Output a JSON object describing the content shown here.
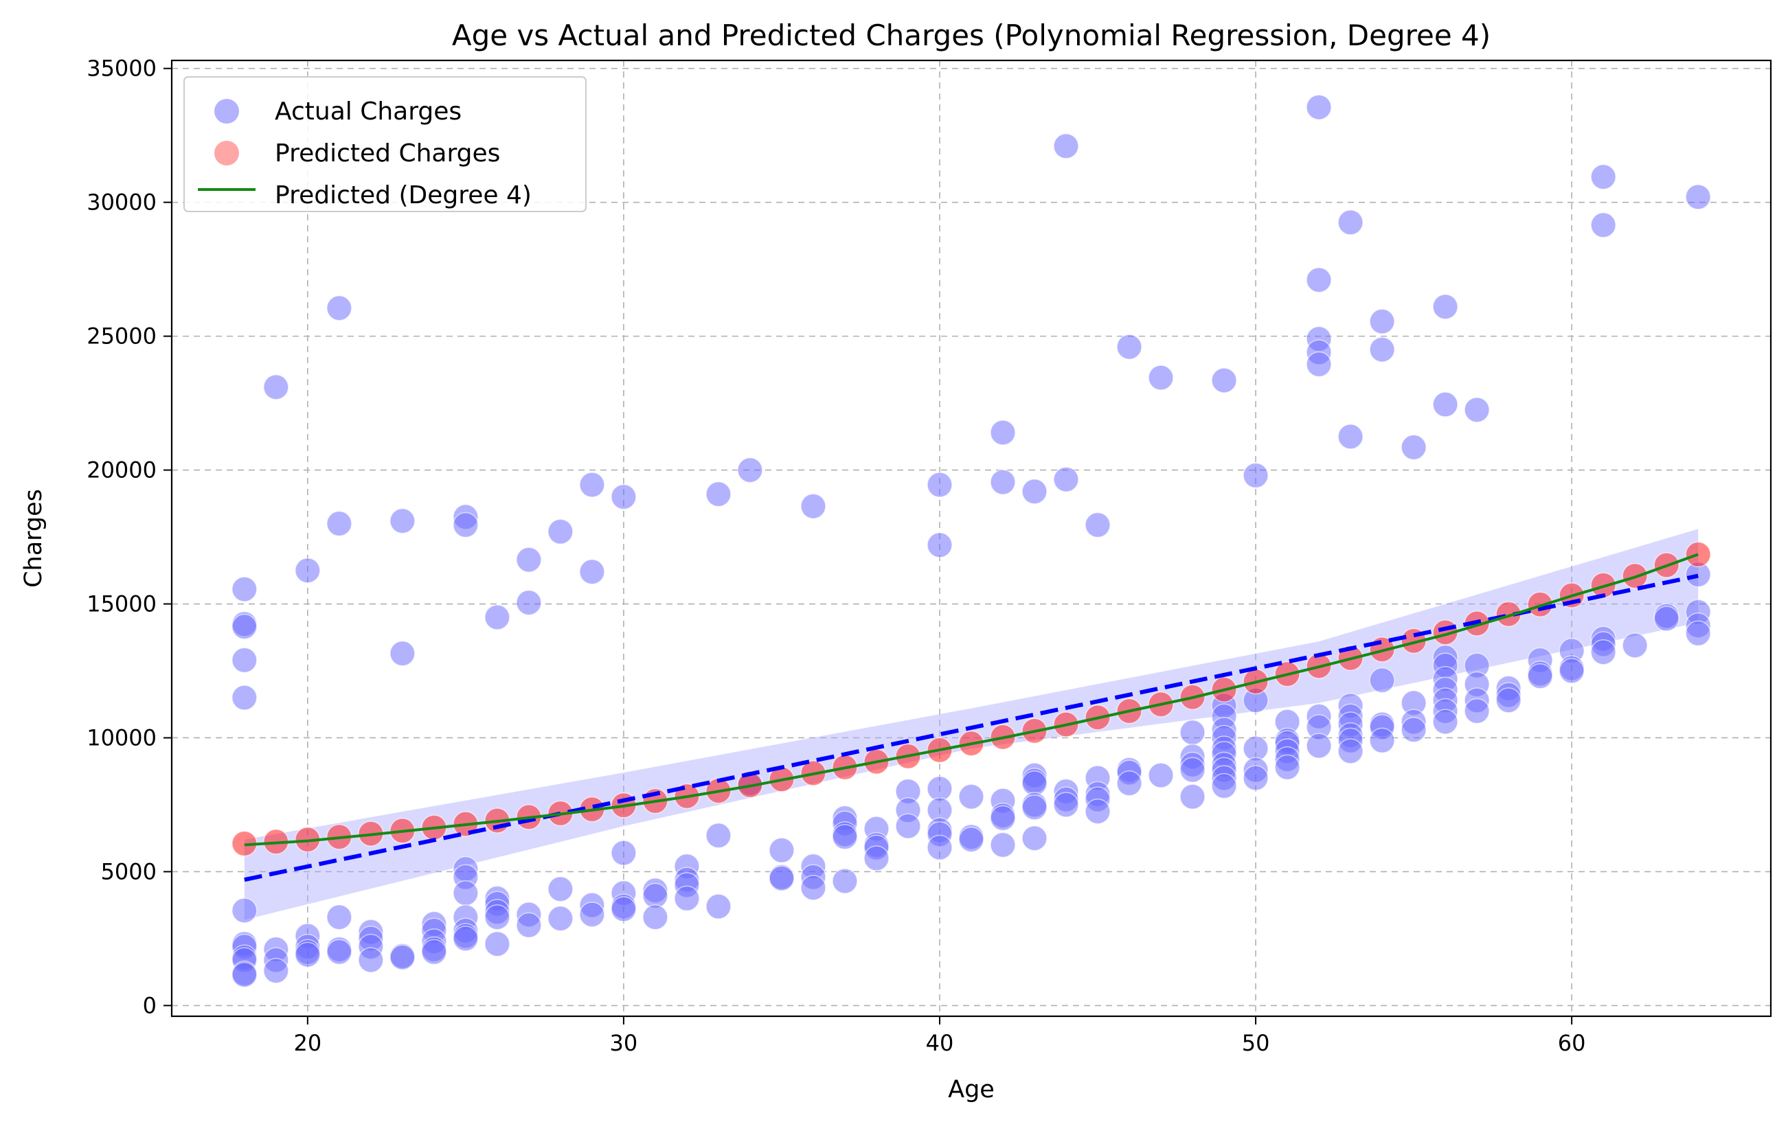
{
  "chart_data": {
    "type": "scatter",
    "title": "Age vs Actual and Predicted Charges (Polynomial Regression, Degree 4)",
    "xlabel": "Age",
    "ylabel": "Charges",
    "xlim": [
      15.7,
      66.3
    ],
    "ylim": [
      -400,
      35300
    ],
    "xticks": [
      20,
      30,
      40,
      50,
      60
    ],
    "yticks": [
      0,
      5000,
      10000,
      15000,
      20000,
      25000,
      30000,
      35000
    ],
    "grid": true,
    "legend_position": "top-left",
    "colors": {
      "actual": "#6666ff",
      "predicted": "#ff2020",
      "poly_line": "#138a13",
      "linear_line": "#0000ff",
      "band": "#aaaaff"
    },
    "series": [
      {
        "name": "Actual Charges",
        "kind": "scatter",
        "points": [
          [
            18,
            15550
          ],
          [
            18,
            14250
          ],
          [
            18,
            14150
          ],
          [
            18,
            12900
          ],
          [
            18,
            11500
          ],
          [
            18,
            3550
          ],
          [
            18,
            2300
          ],
          [
            18,
            2200
          ],
          [
            18,
            1800
          ],
          [
            18,
            1700
          ],
          [
            18,
            1200
          ],
          [
            18,
            1150
          ],
          [
            19,
            23100
          ],
          [
            19,
            2100
          ],
          [
            19,
            1700
          ],
          [
            19,
            1300
          ],
          [
            20,
            16250
          ],
          [
            20,
            2600
          ],
          [
            20,
            2200
          ],
          [
            20,
            2000
          ],
          [
            20,
            1900
          ],
          [
            21,
            26050
          ],
          [
            21,
            18000
          ],
          [
            21,
            3300
          ],
          [
            21,
            2100
          ],
          [
            21,
            2000
          ],
          [
            22,
            2750
          ],
          [
            22,
            2500
          ],
          [
            22,
            2200
          ],
          [
            22,
            1700
          ],
          [
            23,
            18100
          ],
          [
            23,
            13150
          ],
          [
            23,
            1850
          ],
          [
            23,
            1800
          ],
          [
            24,
            3050
          ],
          [
            24,
            2800
          ],
          [
            24,
            2400
          ],
          [
            24,
            2100
          ],
          [
            24,
            2000
          ],
          [
            25,
            18250
          ],
          [
            25,
            17950
          ],
          [
            25,
            5100
          ],
          [
            25,
            4800
          ],
          [
            25,
            4200
          ],
          [
            25,
            3300
          ],
          [
            25,
            2800
          ],
          [
            25,
            2600
          ],
          [
            25,
            2500
          ],
          [
            26,
            14500
          ],
          [
            26,
            4000
          ],
          [
            26,
            3800
          ],
          [
            26,
            3500
          ],
          [
            26,
            3300
          ],
          [
            26,
            2300
          ],
          [
            27,
            16650
          ],
          [
            27,
            15050
          ],
          [
            27,
            3400
          ],
          [
            27,
            3000
          ],
          [
            28,
            17700
          ],
          [
            28,
            4350
          ],
          [
            28,
            3250
          ],
          [
            29,
            19450
          ],
          [
            29,
            16200
          ],
          [
            29,
            3750
          ],
          [
            29,
            3400
          ],
          [
            30,
            19000
          ],
          [
            30,
            5700
          ],
          [
            30,
            4200
          ],
          [
            30,
            3700
          ],
          [
            30,
            3600
          ],
          [
            31,
            4300
          ],
          [
            31,
            4100
          ],
          [
            31,
            3300
          ],
          [
            32,
            5200
          ],
          [
            32,
            4700
          ],
          [
            32,
            4500
          ],
          [
            32,
            4000
          ],
          [
            33,
            19100
          ],
          [
            33,
            6350
          ],
          [
            33,
            3700
          ],
          [
            34,
            20000
          ],
          [
            34,
            8300
          ],
          [
            35,
            5800
          ],
          [
            35,
            4800
          ],
          [
            35,
            4750
          ],
          [
            36,
            18650
          ],
          [
            36,
            5200
          ],
          [
            36,
            4800
          ],
          [
            36,
            4400
          ],
          [
            37,
            7000
          ],
          [
            37,
            6800
          ],
          [
            37,
            6400
          ],
          [
            37,
            6300
          ],
          [
            37,
            4650
          ],
          [
            38,
            6600
          ],
          [
            38,
            6000
          ],
          [
            38,
            5900
          ],
          [
            38,
            5500
          ],
          [
            39,
            8000
          ],
          [
            39,
            7300
          ],
          [
            39,
            6700
          ],
          [
            40,
            19450
          ],
          [
            40,
            17200
          ],
          [
            40,
            8100
          ],
          [
            40,
            7300
          ],
          [
            40,
            6550
          ],
          [
            40,
            6400
          ],
          [
            40,
            5900
          ],
          [
            41,
            7800
          ],
          [
            41,
            6300
          ],
          [
            41,
            6200
          ],
          [
            42,
            21400
          ],
          [
            42,
            19550
          ],
          [
            42,
            7650
          ],
          [
            42,
            7100
          ],
          [
            42,
            7000
          ],
          [
            42,
            6000
          ],
          [
            43,
            19200
          ],
          [
            43,
            8600
          ],
          [
            43,
            8400
          ],
          [
            43,
            8300
          ],
          [
            43,
            7500
          ],
          [
            43,
            7400
          ],
          [
            43,
            6250
          ],
          [
            44,
            32100
          ],
          [
            44,
            19650
          ],
          [
            44,
            8000
          ],
          [
            44,
            7700
          ],
          [
            44,
            7500
          ],
          [
            45,
            17950
          ],
          [
            45,
            8500
          ],
          [
            45,
            7900
          ],
          [
            45,
            7700
          ],
          [
            45,
            7250
          ],
          [
            46,
            24600
          ],
          [
            46,
            8800
          ],
          [
            46,
            8700
          ],
          [
            46,
            8300
          ],
          [
            47,
            23450
          ],
          [
            47,
            8600
          ],
          [
            48,
            10200
          ],
          [
            48,
            9300
          ],
          [
            48,
            9000
          ],
          [
            48,
            8800
          ],
          [
            48,
            7800
          ],
          [
            49,
            23350
          ],
          [
            49,
            11200
          ],
          [
            49,
            10800
          ],
          [
            49,
            10300
          ],
          [
            49,
            10000
          ],
          [
            49,
            9600
          ],
          [
            49,
            9400
          ],
          [
            49,
            9000
          ],
          [
            49,
            8800
          ],
          [
            49,
            8500
          ],
          [
            49,
            8200
          ],
          [
            50,
            19800
          ],
          [
            50,
            11400
          ],
          [
            50,
            9600
          ],
          [
            50,
            8800
          ],
          [
            50,
            8500
          ],
          [
            51,
            10600
          ],
          [
            51,
            9900
          ],
          [
            51,
            9800
          ],
          [
            51,
            9500
          ],
          [
            51,
            9200
          ],
          [
            51,
            8900
          ],
          [
            52,
            33550
          ],
          [
            52,
            27100
          ],
          [
            52,
            24900
          ],
          [
            52,
            24400
          ],
          [
            52,
            23950
          ],
          [
            52,
            10800
          ],
          [
            52,
            10400
          ],
          [
            52,
            9700
          ],
          [
            53,
            29250
          ],
          [
            53,
            21250
          ],
          [
            53,
            11200
          ],
          [
            53,
            10800
          ],
          [
            53,
            10500
          ],
          [
            53,
            10100
          ],
          [
            53,
            9900
          ],
          [
            53,
            9500
          ],
          [
            54,
            25550
          ],
          [
            54,
            24500
          ],
          [
            54,
            12150
          ],
          [
            54,
            10500
          ],
          [
            54,
            10400
          ],
          [
            54,
            9900
          ],
          [
            55,
            20850
          ],
          [
            55,
            11300
          ],
          [
            55,
            10600
          ],
          [
            55,
            10300
          ],
          [
            56,
            26100
          ],
          [
            56,
            22450
          ],
          [
            56,
            13000
          ],
          [
            56,
            12700
          ],
          [
            56,
            12200
          ],
          [
            56,
            11800
          ],
          [
            56,
            11400
          ],
          [
            56,
            11000
          ],
          [
            56,
            10600
          ],
          [
            57,
            22250
          ],
          [
            57,
            12700
          ],
          [
            57,
            12000
          ],
          [
            57,
            11400
          ],
          [
            57,
            11000
          ],
          [
            58,
            11850
          ],
          [
            58,
            11600
          ],
          [
            58,
            11400
          ],
          [
            59,
            12900
          ],
          [
            59,
            12400
          ],
          [
            59,
            12300
          ],
          [
            60,
            13250
          ],
          [
            60,
            12600
          ],
          [
            60,
            12500
          ],
          [
            61,
            30950
          ],
          [
            61,
            29150
          ],
          [
            61,
            13700
          ],
          [
            61,
            13500
          ],
          [
            61,
            13200
          ],
          [
            62,
            13450
          ],
          [
            63,
            14550
          ],
          [
            63,
            14450
          ],
          [
            64,
            30200
          ],
          [
            64,
            16100
          ],
          [
            64,
            14700
          ],
          [
            64,
            14200
          ],
          [
            64,
            13900
          ]
        ]
      },
      {
        "name": "Predicted Charges",
        "kind": "scatter",
        "points": [
          [
            18,
            6050
          ],
          [
            19,
            6120
          ],
          [
            20,
            6200
          ],
          [
            21,
            6300
          ],
          [
            22,
            6420
          ],
          [
            23,
            6530
          ],
          [
            24,
            6650
          ],
          [
            25,
            6780
          ],
          [
            26,
            6910
          ],
          [
            27,
            7040
          ],
          [
            28,
            7180
          ],
          [
            29,
            7330
          ],
          [
            30,
            7480
          ],
          [
            31,
            7640
          ],
          [
            32,
            7820
          ],
          [
            33,
            8020
          ],
          [
            34,
            8230
          ],
          [
            35,
            8450
          ],
          [
            36,
            8680
          ],
          [
            37,
            8900
          ],
          [
            38,
            9110
          ],
          [
            39,
            9310
          ],
          [
            40,
            9540
          ],
          [
            41,
            9790
          ],
          [
            42,
            10030
          ],
          [
            43,
            10260
          ],
          [
            44,
            10500
          ],
          [
            45,
            10760
          ],
          [
            46,
            11000
          ],
          [
            47,
            11250
          ],
          [
            48,
            11520
          ],
          [
            49,
            11800
          ],
          [
            50,
            12100
          ],
          [
            51,
            12380
          ],
          [
            52,
            12680
          ],
          [
            53,
            12980
          ],
          [
            54,
            13300
          ],
          [
            55,
            13620
          ],
          [
            56,
            13940
          ],
          [
            57,
            14270
          ],
          [
            58,
            14620
          ],
          [
            59,
            14980
          ],
          [
            60,
            15320
          ],
          [
            61,
            15700
          ],
          [
            62,
            16050
          ],
          [
            63,
            16450
          ],
          [
            64,
            16850
          ]
        ]
      },
      {
        "name": "Predicted (Degree 4)",
        "kind": "line",
        "points": [
          [
            18,
            6000
          ],
          [
            20,
            6150
          ],
          [
            22,
            6380
          ],
          [
            24,
            6630
          ],
          [
            26,
            6880
          ],
          [
            28,
            7150
          ],
          [
            30,
            7450
          ],
          [
            32,
            7800
          ],
          [
            34,
            8200
          ],
          [
            36,
            8650
          ],
          [
            38,
            9100
          ],
          [
            40,
            9550
          ],
          [
            42,
            10000
          ],
          [
            44,
            10480
          ],
          [
            46,
            11000
          ],
          [
            48,
            11500
          ],
          [
            50,
            12080
          ],
          [
            52,
            12650
          ],
          [
            54,
            13250
          ],
          [
            56,
            13850
          ],
          [
            58,
            14550
          ],
          [
            60,
            15300
          ],
          [
            62,
            16000
          ],
          [
            64,
            16850
          ]
        ]
      },
      {
        "kind": "dashed-line",
        "points": [
          [
            18,
            4700
          ],
          [
            64,
            16050
          ]
        ]
      },
      {
        "kind": "band",
        "upper": [
          [
            18,
            6200
          ],
          [
            30,
            8700
          ],
          [
            41,
            11100
          ],
          [
            52,
            13600
          ],
          [
            64,
            17800
          ]
        ],
        "lower": [
          [
            18,
            3200
          ],
          [
            30,
            6700
          ],
          [
            41,
            9600
          ],
          [
            52,
            11300
          ],
          [
            64,
            14300
          ]
        ]
      }
    ]
  }
}
